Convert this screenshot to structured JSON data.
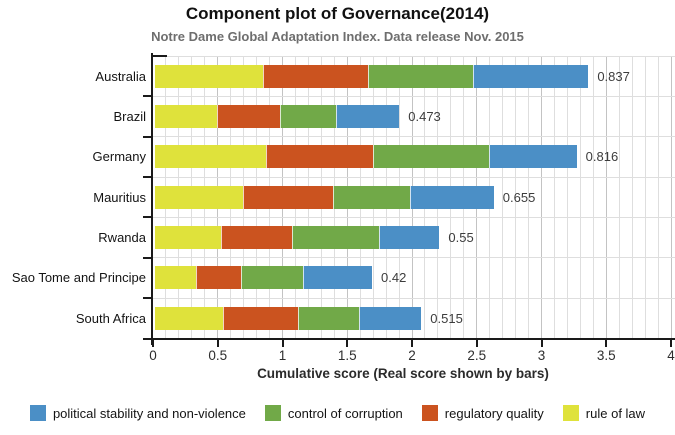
{
  "header": {
    "title": "Component plot of Governance(2014)",
    "subtitle": "Notre Dame Global Adaptation Index. Data release Nov. 2015"
  },
  "chart_data": {
    "type": "bar",
    "orientation": "horizontal",
    "stacked": true,
    "title": "Component plot of Governance(2014)",
    "subtitle": "Notre Dame Global Adaptation Index. Data release Nov. 2015",
    "xlabel": "Cumulative score (Real score shown by bars)",
    "xlim": [
      0,
      4
    ],
    "xtick_labels": [
      "0",
      "0.5",
      "1",
      "1.5",
      "2",
      "2.5",
      "3",
      "3.5",
      "4"
    ],
    "grid": {
      "minor_step": 0.1,
      "major_step": 0.5,
      "vertical": true,
      "horizontal_row_lines": true
    },
    "categories": [
      "Australia",
      "Brazil",
      "Germany",
      "Mauritius",
      "Rwanda",
      "Sao Tome and Principe",
      "South Africa"
    ],
    "series": [
      {
        "name": "rule of law",
        "color": "#dfe23b",
        "values": [
          0.84,
          0.48,
          0.86,
          0.68,
          0.51,
          0.32,
          0.53
        ]
      },
      {
        "name": "regulatory quality",
        "color": "#cb531f",
        "values": [
          0.81,
          0.49,
          0.83,
          0.7,
          0.55,
          0.35,
          0.58
        ]
      },
      {
        "name": "control of corruption",
        "color": "#71a948",
        "values": [
          0.81,
          0.43,
          0.89,
          0.59,
          0.67,
          0.48,
          0.47
        ]
      },
      {
        "name": "political stability and non-violence",
        "color": "#4b8fc6",
        "values": [
          0.89,
          0.49,
          0.68,
          0.65,
          0.47,
          0.53,
          0.48
        ]
      }
    ],
    "value_labels": [
      "0.837",
      "0.473",
      "0.816",
      "0.655",
      "0.55",
      "0.42",
      "0.515"
    ],
    "legend": [
      {
        "label": "political stability and non-violence",
        "color": "#4b8fc6"
      },
      {
        "label": "control of corruption",
        "color": "#71a948"
      },
      {
        "label": "regulatory quality",
        "color": "#cb531f"
      },
      {
        "label": "rule of law",
        "color": "#dfe23b"
      }
    ],
    "colors": {
      "axis": "#1a1a1a",
      "grid_minor": "#dedede",
      "grid_major": "#c3c3c3",
      "tick_text": "#2e2e2e",
      "value_text": "#3c3c3c",
      "category_text": "#141414"
    }
  }
}
